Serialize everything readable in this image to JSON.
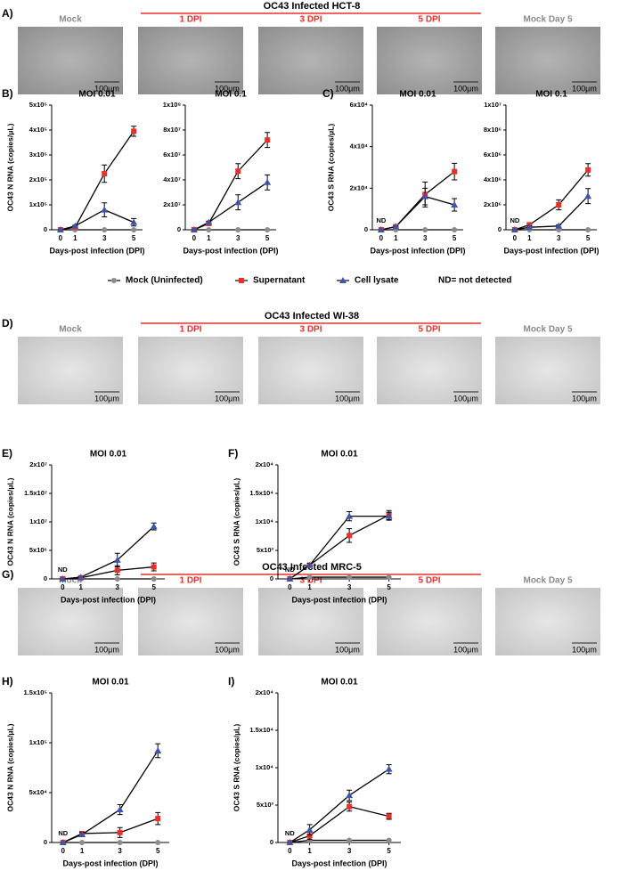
{
  "panels": [
    {
      "letter": "A)",
      "title": "OC43 Infected HCT-8",
      "images": [
        "Mock",
        "1 DPI",
        "3 DPI",
        "5 DPI",
        "Mock Day 5"
      ],
      "scale": "100μm"
    },
    {
      "letter": "D)",
      "title": "OC43 Infected WI-38",
      "images": [
        "Mock",
        "1 DPI",
        "3 DPI",
        "5 DPI",
        "Mock Day 5"
      ],
      "scale": "100μm"
    },
    {
      "letter": "G)",
      "title": "OC43 Infected MRC-5",
      "images": [
        "Mock",
        "1 DPI",
        "3 DPI",
        "5 DPI",
        "Mock Day 5"
      ],
      "scale": "100μm"
    }
  ],
  "legend_note": "ND= not detected",
  "chart_data": [
    {
      "type": "line",
      "label": "B)",
      "title": "MOI 0.01",
      "ylabel": "OC43 N RNA (copies/μL)",
      "xlabel": "Days-post infection (DPI)",
      "x": [
        0,
        1,
        3,
        5
      ],
      "xlim": [
        -0.6,
        5.6
      ],
      "xticks": [
        0,
        1,
        3,
        5
      ],
      "ylim": [
        0,
        500000
      ],
      "yticks": [
        0,
        {
          "value": 100000,
          "label": "1x10⁵"
        },
        {
          "value": 200000,
          "label": "2x10⁵"
        },
        {
          "value": 300000,
          "label": "3x10⁵"
        },
        {
          "value": 400000,
          "label": "4x10⁵"
        },
        {
          "value": 500000,
          "label": "5x10⁵"
        }
      ],
      "series": [
        {
          "name": "Mock (Uninfected)",
          "color": "#8c8c8c",
          "marker": "circle",
          "values": [
            0,
            0,
            0,
            0
          ]
        },
        {
          "name": "Supernatant",
          "color": "#e8302a",
          "marker": "square",
          "values": [
            0,
            10000,
            225000,
            395000
          ],
          "errors": [
            0,
            2000,
            35000,
            20000
          ]
        },
        {
          "name": "Cell lysate",
          "color": "#3e54a6",
          "marker": "triangle",
          "values": [
            0,
            15000,
            80000,
            30000
          ],
          "errors": [
            0,
            3000,
            28000,
            15000
          ]
        }
      ]
    },
    {
      "type": "line",
      "title": "MOI 0.1",
      "xlabel": "Days-post infection (DPI)",
      "x": [
        0,
        1,
        3,
        5
      ],
      "xlim": [
        -0.6,
        5.6
      ],
      "xticks": [
        0,
        1,
        3,
        5
      ],
      "ylim": [
        0,
        100000000
      ],
      "yticks": [
        0,
        {
          "value": 20000000,
          "label": "2x10⁷"
        },
        {
          "value": 40000000,
          "label": "4x10⁷"
        },
        {
          "value": 60000000,
          "label": "6x10⁷"
        },
        {
          "value": 80000000,
          "label": "8x10⁷"
        },
        {
          "value": 100000000,
          "label": "1x10⁸"
        }
      ],
      "series": [
        {
          "name": "Mock (Uninfected)",
          "color": "#8c8c8c",
          "marker": "circle",
          "values": [
            0,
            0,
            0,
            0
          ]
        },
        {
          "name": "Supernatant",
          "color": "#e8302a",
          "marker": "square",
          "values": [
            0,
            5000000,
            47000000,
            72000000
          ],
          "errors": [
            0,
            1000000,
            6000000,
            6000000
          ]
        },
        {
          "name": "Cell lysate",
          "color": "#3e54a6",
          "marker": "triangle",
          "values": [
            0,
            6000000,
            22000000,
            38000000
          ],
          "errors": [
            0,
            1000000,
            6000000,
            6000000
          ]
        }
      ]
    },
    {
      "type": "line",
      "label": "C)",
      "title": "MOI 0.01",
      "ylabel": "OC43 S RNA (copies/μL)",
      "xlabel": "Days-post infection (DPI)",
      "annotation": "ND",
      "x": [
        0,
        1,
        3,
        5
      ],
      "xlim": [
        -0.6,
        5.6
      ],
      "xticks": [
        0,
        1,
        3,
        5
      ],
      "ylim": [
        0,
        60000
      ],
      "yticks": [
        0,
        {
          "value": 20000,
          "label": "2x10⁴"
        },
        {
          "value": 40000,
          "label": "4x10⁴"
        },
        {
          "value": 60000,
          "label": "6x10⁴"
        }
      ],
      "series": [
        {
          "name": "Mock (Uninfected)",
          "color": "#8c8c8c",
          "marker": "circle",
          "values": [
            0,
            0,
            0,
            0
          ]
        },
        {
          "name": "Supernatant",
          "color": "#e8302a",
          "marker": "square",
          "values": [
            0,
            1500,
            17000,
            28000
          ],
          "errors": [
            0,
            300,
            6000,
            4000
          ]
        },
        {
          "name": "Cell lysate",
          "color": "#3e54a6",
          "marker": "triangle",
          "values": [
            0,
            1500,
            16000,
            12000
          ],
          "errors": [
            0,
            300,
            4000,
            3000
          ]
        }
      ]
    },
    {
      "type": "line",
      "title": "MOI 0.1",
      "xlabel": "Days-post infection (DPI)",
      "annotation": "ND",
      "x": [
        0,
        1,
        3,
        5
      ],
      "xlim": [
        -0.6,
        5.6
      ],
      "xticks": [
        0,
        1,
        3,
        5
      ],
      "ylim": [
        0,
        10000000
      ],
      "yticks": [
        0,
        {
          "value": 2000000,
          "label": "2x10⁶"
        },
        {
          "value": 4000000,
          "label": "4x10⁶"
        },
        {
          "value": 6000000,
          "label": "6x10⁶"
        },
        {
          "value": 8000000,
          "label": "8x10⁶"
        },
        {
          "value": 10000000,
          "label": "1x10⁷"
        }
      ],
      "series": [
        {
          "name": "Mock (Uninfected)",
          "color": "#8c8c8c",
          "marker": "circle",
          "values": [
            0,
            0,
            0,
            0
          ]
        },
        {
          "name": "Supernatant",
          "color": "#e8302a",
          "marker": "square",
          "values": [
            0,
            400000,
            2000000,
            4800000
          ],
          "errors": [
            0,
            100000,
            400000,
            500000
          ]
        },
        {
          "name": "Cell lysate",
          "color": "#3e54a6",
          "marker": "triangle",
          "values": [
            0,
            200000,
            300000,
            2700000
          ],
          "errors": [
            0,
            100000,
            100000,
            600000
          ]
        }
      ]
    },
    {
      "type": "line",
      "label": "E)",
      "title": "MOI 0.01",
      "ylabel": "OC43 N RNA (copies/μL)",
      "xlabel": "Days-post infection (DPI)",
      "annotation": "ND",
      "x": [
        0,
        1,
        3,
        5
      ],
      "xlim": [
        -0.6,
        5.6
      ],
      "xticks": [
        0,
        1,
        3,
        5
      ],
      "ylim": [
        0,
        20000000
      ],
      "yticks": [
        0,
        {
          "value": 5000000,
          "label": "5x10⁶"
        },
        {
          "value": 10000000,
          "label": "1x10⁷"
        },
        {
          "value": 15000000,
          "label": "1.5x10⁷"
        },
        {
          "value": 20000000,
          "label": "2x10⁷"
        }
      ],
      "series": [
        {
          "name": "Mock (Uninfected)",
          "color": "#8c8c8c",
          "marker": "circle",
          "values": [
            0,
            0,
            0,
            0
          ]
        },
        {
          "name": "Supernatant",
          "color": "#e8302a",
          "marker": "square",
          "values": [
            0,
            200000,
            1500000,
            2100000
          ],
          "errors": [
            0,
            50000,
            800000,
            700000
          ]
        },
        {
          "name": "Cell lysate",
          "color": "#3e54a6",
          "marker": "triangle",
          "values": [
            0,
            300000,
            3300000,
            9200000
          ],
          "errors": [
            0,
            50000,
            1200000,
            600000
          ]
        }
      ]
    },
    {
      "type": "line",
      "label": "F)",
      "title": "MOI 0.01",
      "ylabel": "OC43 S RNA (copies/μL)",
      "xlabel": "Days-post infection (DPI)",
      "annotation": "ND",
      "x": [
        0,
        1,
        3,
        5
      ],
      "xlim": [
        -0.6,
        5.6
      ],
      "xticks": [
        0,
        1,
        3,
        5
      ],
      "ylim": [
        0,
        20000
      ],
      "yticks": [
        0,
        {
          "value": 5000,
          "label": "5x10³"
        },
        {
          "value": 10000,
          "label": "1x10⁴"
        },
        {
          "value": 15000,
          "label": "1.5x10⁴"
        },
        {
          "value": 20000,
          "label": "2x10⁴"
        }
      ],
      "series": [
        {
          "name": "Mock (Uninfected)",
          "color": "#8c8c8c",
          "marker": "circle",
          "values": [
            0,
            300,
            300,
            300
          ]
        },
        {
          "name": "Supernatant",
          "color": "#e8302a",
          "marker": "square",
          "values": [
            0,
            2400,
            7600,
            11200
          ],
          "errors": [
            0,
            300,
            1200,
            800
          ]
        },
        {
          "name": "Cell lysate",
          "color": "#3e54a6",
          "marker": "triangle",
          "values": [
            0,
            2400,
            11000,
            11000
          ],
          "errors": [
            0,
            300,
            800,
            700
          ]
        }
      ]
    },
    {
      "type": "line",
      "label": "H)",
      "title": "MOI 0.01",
      "ylabel": "OC43 N RNA (copies/μL)",
      "xlabel": "Days-post infection (DPI)",
      "annotation": "ND",
      "x": [
        0,
        1,
        3,
        5
      ],
      "xlim": [
        -0.6,
        5.6
      ],
      "xticks": [
        0,
        1,
        3,
        5
      ],
      "ylim": [
        0,
        150000
      ],
      "yticks": [
        0,
        {
          "value": 50000,
          "label": "5x10⁴"
        },
        {
          "value": 100000,
          "label": "1x10⁵"
        },
        {
          "value": 150000,
          "label": "1.5x10⁵"
        }
      ],
      "series": [
        {
          "name": "Mock (Uninfected)",
          "color": "#8c8c8c",
          "marker": "circle",
          "values": [
            0,
            0,
            0,
            0
          ]
        },
        {
          "name": "Supernatant",
          "color": "#e8302a",
          "marker": "square",
          "values": [
            0,
            9000,
            10000,
            24000
          ],
          "errors": [
            0,
            2000,
            5000,
            6000
          ]
        },
        {
          "name": "Cell lysate",
          "color": "#3e54a6",
          "marker": "triangle",
          "values": [
            0,
            8000,
            33000,
            92000
          ],
          "errors": [
            0,
            2000,
            5000,
            7000
          ]
        }
      ]
    },
    {
      "type": "line",
      "label": "I)",
      "title": "MOI 0.01",
      "ylabel": "OC43 S RNA (copies/μL)",
      "xlabel": "Days-post infection (DPI)",
      "annotation": "ND",
      "x": [
        0,
        1,
        3,
        5
      ],
      "xlim": [
        -0.6,
        5.6
      ],
      "xticks": [
        0,
        1,
        3,
        5
      ],
      "ylim": [
        0,
        20000
      ],
      "yticks": [
        0,
        {
          "value": 5000,
          "label": "5x10³"
        },
        {
          "value": 10000,
          "label": "1x10⁴"
        },
        {
          "value": 15000,
          "label": "1.5x10⁴"
        },
        {
          "value": 20000,
          "label": "2x10⁴"
        }
      ],
      "series": [
        {
          "name": "Mock (Uninfected)",
          "color": "#8c8c8c",
          "marker": "circle",
          "values": [
            0,
            300,
            300,
            300
          ]
        },
        {
          "name": "Supernatant",
          "color": "#e8302a",
          "marker": "square",
          "values": [
            0,
            900,
            4800,
            3500
          ],
          "errors": [
            0,
            500,
            600,
            400
          ]
        },
        {
          "name": "Cell lysate",
          "color": "#3e54a6",
          "marker": "triangle",
          "values": [
            0,
            1700,
            6300,
            9800
          ],
          "errors": [
            0,
            700,
            700,
            600
          ]
        }
      ]
    }
  ]
}
